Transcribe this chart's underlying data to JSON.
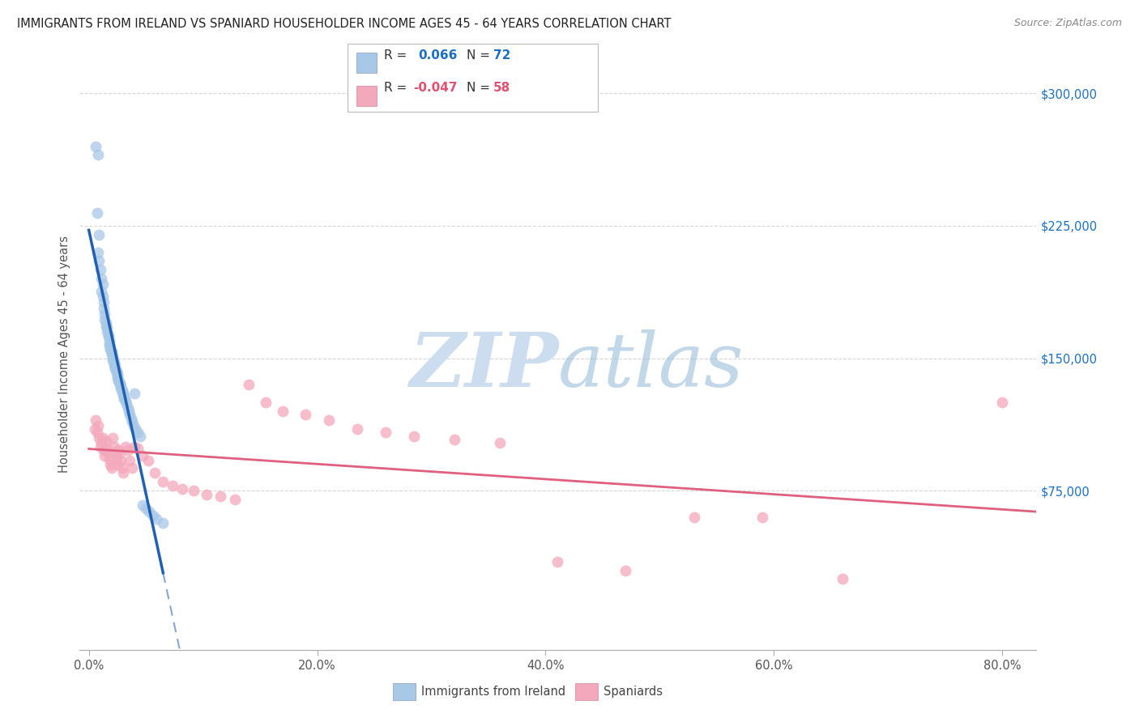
{
  "title": "IMMIGRANTS FROM IRELAND VS SPANIARD HOUSEHOLDER INCOME AGES 45 - 64 YEARS CORRELATION CHART",
  "source": "Source: ZipAtlas.com",
  "ylabel": "Householder Income Ages 45 - 64 years",
  "xlabel_ticks": [
    "0.0%",
    "20.0%",
    "40.0%",
    "60.0%",
    "80.0%"
  ],
  "xlabel_tick_vals": [
    0.0,
    0.2,
    0.4,
    0.6,
    0.8
  ],
  "ylabel_ticks": [
    "$75,000",
    "$150,000",
    "$225,000",
    "$300,000"
  ],
  "ylabel_tick_vals": [
    75000,
    150000,
    225000,
    300000
  ],
  "xlim": [
    -0.008,
    0.83
  ],
  "ylim": [
    -15000,
    320000
  ],
  "ireland_R": 0.066,
  "ireland_N": 72,
  "spaniard_R": -0.047,
  "spaniard_N": 58,
  "ireland_color": "#a8c8e8",
  "spaniard_color": "#f4a8bc",
  "ireland_line_color": "#2060b0",
  "spaniard_line_color": "#e06080",
  "watermark_color": "#ccddf0",
  "background_color": "#ffffff",
  "grid_color": "#cccccc",
  "ireland_x": [
    0.006,
    0.008,
    0.007,
    0.009,
    0.008,
    0.009,
    0.01,
    0.011,
    0.012,
    0.011,
    0.012,
    0.013,
    0.013,
    0.014,
    0.014,
    0.015,
    0.015,
    0.016,
    0.016,
    0.017,
    0.017,
    0.018,
    0.018,
    0.018,
    0.019,
    0.019,
    0.02,
    0.02,
    0.02,
    0.021,
    0.021,
    0.021,
    0.022,
    0.022,
    0.022,
    0.023,
    0.023,
    0.024,
    0.024,
    0.025,
    0.025,
    0.025,
    0.026,
    0.026,
    0.027,
    0.027,
    0.028,
    0.028,
    0.029,
    0.029,
    0.03,
    0.03,
    0.031,
    0.031,
    0.032,
    0.033,
    0.034,
    0.035,
    0.036,
    0.037,
    0.038,
    0.039,
    0.04,
    0.041,
    0.043,
    0.045,
    0.047,
    0.05,
    0.053,
    0.056,
    0.059,
    0.065
  ],
  "ireland_y": [
    270000,
    265000,
    232000,
    220000,
    210000,
    205000,
    200000,
    195000,
    192000,
    188000,
    185000,
    182000,
    178000,
    175000,
    172000,
    170000,
    168000,
    167000,
    165000,
    163000,
    162000,
    160000,
    158000,
    157000,
    156000,
    155000,
    154000,
    153000,
    152000,
    151000,
    150000,
    149000,
    148000,
    147000,
    146000,
    145000,
    144000,
    143000,
    142000,
    141000,
    140000,
    139000,
    138000,
    137000,
    136000,
    135000,
    134000,
    133000,
    132000,
    131000,
    130000,
    129000,
    128000,
    127000,
    126000,
    124000,
    122000,
    120000,
    118000,
    116000,
    114000,
    112000,
    130000,
    110000,
    108000,
    106000,
    67000,
    65000,
    63000,
    61000,
    59000,
    57000
  ],
  "spaniard_x": [
    0.005,
    0.006,
    0.007,
    0.008,
    0.009,
    0.01,
    0.011,
    0.012,
    0.013,
    0.014,
    0.015,
    0.016,
    0.017,
    0.018,
    0.019,
    0.02,
    0.021,
    0.022,
    0.023,
    0.024,
    0.025,
    0.026,
    0.027,
    0.028,
    0.029,
    0.03,
    0.032,
    0.034,
    0.036,
    0.038,
    0.04,
    0.043,
    0.047,
    0.052,
    0.058,
    0.065,
    0.073,
    0.082,
    0.092,
    0.103,
    0.115,
    0.128,
    0.14,
    0.155,
    0.17,
    0.19,
    0.21,
    0.235,
    0.26,
    0.285,
    0.32,
    0.36,
    0.41,
    0.47,
    0.53,
    0.59,
    0.66,
    0.8
  ],
  "spaniard_y": [
    110000,
    115000,
    108000,
    112000,
    105000,
    100000,
    102000,
    105000,
    98000,
    95000,
    103000,
    99000,
    96000,
    93000,
    90000,
    88000,
    105000,
    100000,
    96000,
    93000,
    90000,
    98000,
    96000,
    92000,
    88000,
    85000,
    100000,
    98000,
    92000,
    88000,
    100000,
    99000,
    95000,
    92000,
    85000,
    80000,
    78000,
    76000,
    75000,
    73000,
    72000,
    70000,
    135000,
    125000,
    120000,
    118000,
    115000,
    110000,
    108000,
    106000,
    104000,
    102000,
    35000,
    30000,
    60000,
    60000,
    25000,
    125000
  ]
}
